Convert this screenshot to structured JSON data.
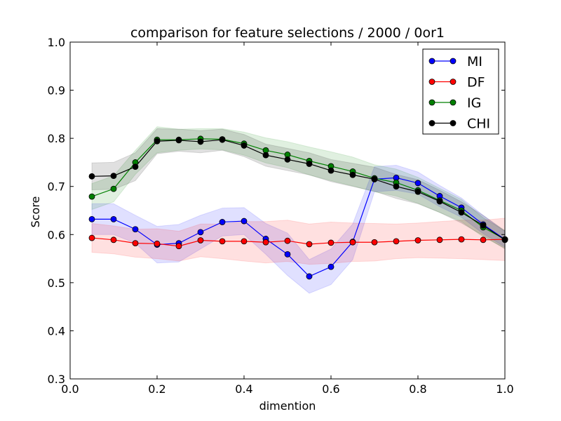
{
  "chart_data": {
    "type": "line",
    "title": "comparison for feature selections / 2000 / 0or1",
    "xlabel": "dimention",
    "ylabel": "Score",
    "xlim": [
      0.0,
      1.0
    ],
    "ylim": [
      0.3,
      1.0
    ],
    "xticks": [
      0.0,
      0.2,
      0.4,
      0.6,
      0.8,
      1.0
    ],
    "xtick_labels": [
      "0.0",
      "0.2",
      "0.4",
      "0.6",
      "0.8",
      "1.0"
    ],
    "yticks": [
      0.3,
      0.4,
      0.5,
      0.6,
      0.7,
      0.8,
      0.9,
      1.0
    ],
    "ytick_labels": [
      "0.3",
      "0.4",
      "0.5",
      "0.6",
      "0.7",
      "0.8",
      "0.9",
      "1.0"
    ],
    "grid": false,
    "legend_position": "top-right",
    "x": [
      0.05,
      0.1,
      0.15,
      0.2,
      0.25,
      0.3,
      0.35,
      0.4,
      0.45,
      0.5,
      0.55,
      0.6,
      0.65,
      0.7,
      0.75,
      0.8,
      0.85,
      0.9,
      0.95,
      1.0
    ],
    "series": [
      {
        "name": "MI",
        "color": "#0000ff",
        "values": [
          0.632,
          0.632,
          0.611,
          0.579,
          0.582,
          0.605,
          0.626,
          0.628,
          0.591,
          0.559,
          0.513,
          0.533,
          0.585,
          0.715,
          0.718,
          0.707,
          0.68,
          0.656,
          0.621,
          0.59
        ],
        "band_lower": [
          0.6,
          0.6,
          0.582,
          0.541,
          0.543,
          0.57,
          0.597,
          0.6,
          0.559,
          0.515,
          0.478,
          0.496,
          0.548,
          0.689,
          0.692,
          0.684,
          0.658,
          0.636,
          0.602,
          0.574
        ],
        "band_upper": [
          0.664,
          0.664,
          0.64,
          0.617,
          0.621,
          0.64,
          0.655,
          0.656,
          0.623,
          0.603,
          0.548,
          0.57,
          0.622,
          0.741,
          0.744,
          0.73,
          0.702,
          0.676,
          0.64,
          0.606
        ]
      },
      {
        "name": "DF",
        "color": "#ff0000",
        "values": [
          0.593,
          0.589,
          0.582,
          0.581,
          0.576,
          0.588,
          0.586,
          0.586,
          0.584,
          0.587,
          0.58,
          0.583,
          0.584,
          0.584,
          0.586,
          0.588,
          0.589,
          0.59,
          0.589,
          0.59
        ],
        "band_lower": [
          0.563,
          0.56,
          0.553,
          0.55,
          0.545,
          0.554,
          0.55,
          0.545,
          0.541,
          0.544,
          0.538,
          0.54,
          0.544,
          0.545,
          0.55,
          0.552,
          0.551,
          0.55,
          0.548,
          0.546
        ],
        "band_upper": [
          0.623,
          0.618,
          0.611,
          0.612,
          0.607,
          0.622,
          0.622,
          0.627,
          0.627,
          0.63,
          0.622,
          0.626,
          0.624,
          0.623,
          0.622,
          0.624,
          0.627,
          0.63,
          0.63,
          0.634
        ]
      },
      {
        "name": "IG",
        "color": "#008000",
        "values": [
          0.679,
          0.695,
          0.75,
          0.797,
          0.797,
          0.799,
          0.798,
          0.789,
          0.775,
          0.766,
          0.753,
          0.742,
          0.731,
          0.717,
          0.708,
          0.692,
          0.671,
          0.65,
          0.615,
          0.59
        ],
        "band_lower": [
          0.652,
          0.668,
          0.725,
          0.77,
          0.775,
          0.778,
          0.776,
          0.765,
          0.749,
          0.739,
          0.724,
          0.712,
          0.701,
          0.689,
          0.68,
          0.665,
          0.646,
          0.627,
          0.595,
          0.572
        ],
        "band_upper": [
          0.706,
          0.722,
          0.775,
          0.824,
          0.819,
          0.82,
          0.82,
          0.813,
          0.801,
          0.793,
          0.782,
          0.772,
          0.761,
          0.745,
          0.736,
          0.719,
          0.696,
          0.673,
          0.635,
          0.608
        ]
      },
      {
        "name": "CHI",
        "color": "#000000",
        "values": [
          0.721,
          0.722,
          0.741,
          0.794,
          0.796,
          0.793,
          0.797,
          0.785,
          0.765,
          0.756,
          0.747,
          0.733,
          0.724,
          0.715,
          0.7,
          0.689,
          0.669,
          0.646,
          0.619,
          0.589
        ],
        "band_lower": [
          0.693,
          0.694,
          0.712,
          0.768,
          0.773,
          0.77,
          0.775,
          0.762,
          0.742,
          0.733,
          0.724,
          0.71,
          0.7,
          0.69,
          0.675,
          0.664,
          0.646,
          0.624,
          0.598,
          0.57
        ],
        "band_upper": [
          0.749,
          0.75,
          0.77,
          0.82,
          0.819,
          0.816,
          0.819,
          0.808,
          0.788,
          0.779,
          0.77,
          0.756,
          0.748,
          0.74,
          0.725,
          0.714,
          0.692,
          0.668,
          0.64,
          0.608
        ]
      }
    ]
  }
}
